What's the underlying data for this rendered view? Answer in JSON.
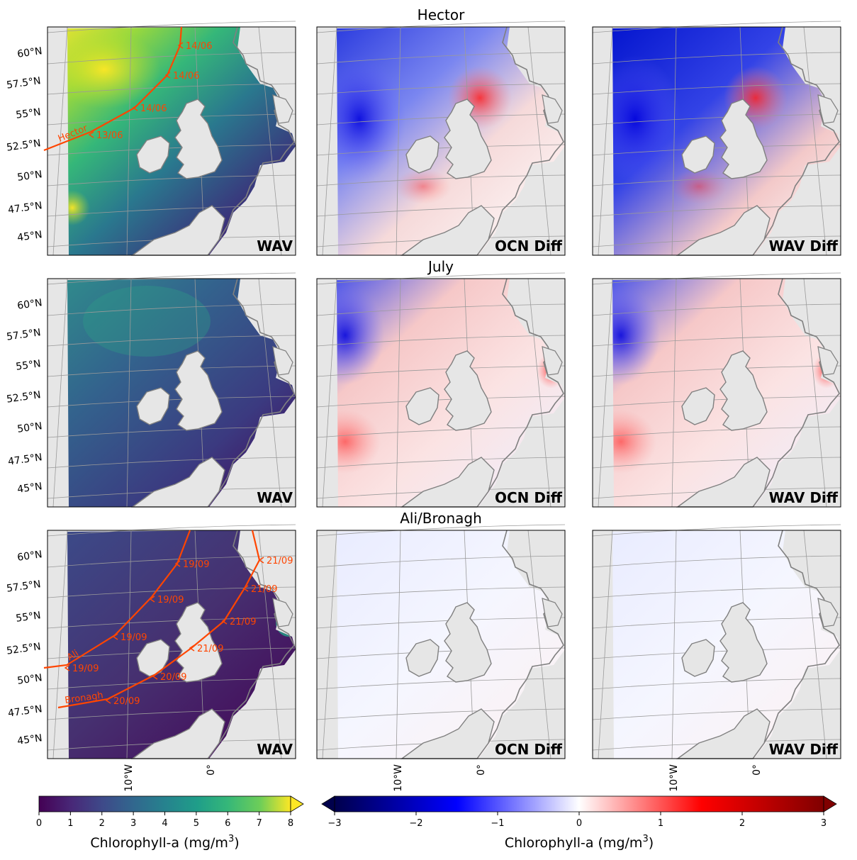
{
  "figure": {
    "row_titles": [
      "Hector",
      "July",
      "Ali/Bronagh"
    ],
    "column_labels": [
      "WAV",
      "OCN Diff",
      "WAV Diff"
    ],
    "lat_ticks": [
      "60°N",
      "57.5°N",
      "55°N",
      "52.5°N",
      "50°N",
      "47.5°N",
      "45°N"
    ],
    "lon_ticks": [
      "10°W",
      "0°"
    ],
    "colors": {
      "land": "#e6e6e6",
      "coast": "#808080",
      "track": "#ff4500",
      "grid": "#999999"
    }
  },
  "colorbars": {
    "absolute": {
      "label": "Chlorophyll-a (mg/m",
      "label_sup": "3",
      "label_end": ")",
      "ticks": [
        "0",
        "1",
        "2",
        "3",
        "4",
        "5",
        "6",
        "7",
        "8"
      ],
      "range": [
        0,
        8
      ],
      "colormap": "viridis",
      "extend": "max"
    },
    "difference": {
      "label": "Chlorophyll-a (mg/m",
      "label_sup": "3",
      "label_end": ")",
      "ticks": [
        "−3",
        "−2",
        "−1",
        "0",
        "1",
        "2",
        "3"
      ],
      "range": [
        -3,
        3
      ],
      "colormap": "seismic",
      "extend": "both"
    }
  },
  "tracks": {
    "hector": {
      "name": "Hector",
      "dates": [
        "14/06",
        "14/06",
        "14/06",
        "13/06"
      ]
    },
    "ali": {
      "name": "Ali",
      "dates": [
        "19/09",
        "19/09",
        "19/09",
        "19/09"
      ]
    },
    "bronagh": {
      "name": "Bronagh",
      "dates": [
        "21/09",
        "21/09",
        "21/09",
        "21/09",
        "20/09",
        "20/09"
      ]
    }
  },
  "chart_data": [
    {
      "type": "heatmap",
      "title": "Hector",
      "panel": "WAV",
      "variable": "Chlorophyll-a (mg/m3)",
      "colormap": "viridis",
      "vmin": 0,
      "vmax": 8
    },
    {
      "type": "heatmap",
      "title": "Hector",
      "panel": "OCN Diff",
      "variable": "Chlorophyll-a (mg/m3)",
      "colormap": "seismic",
      "vmin": -3,
      "vmax": 3
    },
    {
      "type": "heatmap",
      "title": "Hector",
      "panel": "WAV Diff",
      "variable": "Chlorophyll-a (mg/m3)",
      "colormap": "seismic",
      "vmin": -3,
      "vmax": 3
    },
    {
      "type": "heatmap",
      "title": "July",
      "panel": "WAV",
      "variable": "Chlorophyll-a (mg/m3)",
      "colormap": "viridis",
      "vmin": 0,
      "vmax": 8
    },
    {
      "type": "heatmap",
      "title": "July",
      "panel": "OCN Diff",
      "variable": "Chlorophyll-a (mg/m3)",
      "colormap": "seismic",
      "vmin": -3,
      "vmax": 3
    },
    {
      "type": "heatmap",
      "title": "July",
      "panel": "WAV Diff",
      "variable": "Chlorophyll-a (mg/m3)",
      "colormap": "seismic",
      "vmin": -3,
      "vmax": 3
    },
    {
      "type": "heatmap",
      "title": "Ali/Bronagh",
      "panel": "WAV",
      "variable": "Chlorophyll-a (mg/m3)",
      "colormap": "viridis",
      "vmin": 0,
      "vmax": 8
    },
    {
      "type": "heatmap",
      "title": "Ali/Bronagh",
      "panel": "OCN Diff",
      "variable": "Chlorophyll-a (mg/m3)",
      "colormap": "seismic",
      "vmin": -3,
      "vmax": 3
    },
    {
      "type": "heatmap",
      "title": "Ali/Bronagh",
      "panel": "WAV Diff",
      "variable": "Chlorophyll-a (mg/m3)",
      "colormap": "seismic",
      "vmin": -3,
      "vmax": 3
    }
  ]
}
